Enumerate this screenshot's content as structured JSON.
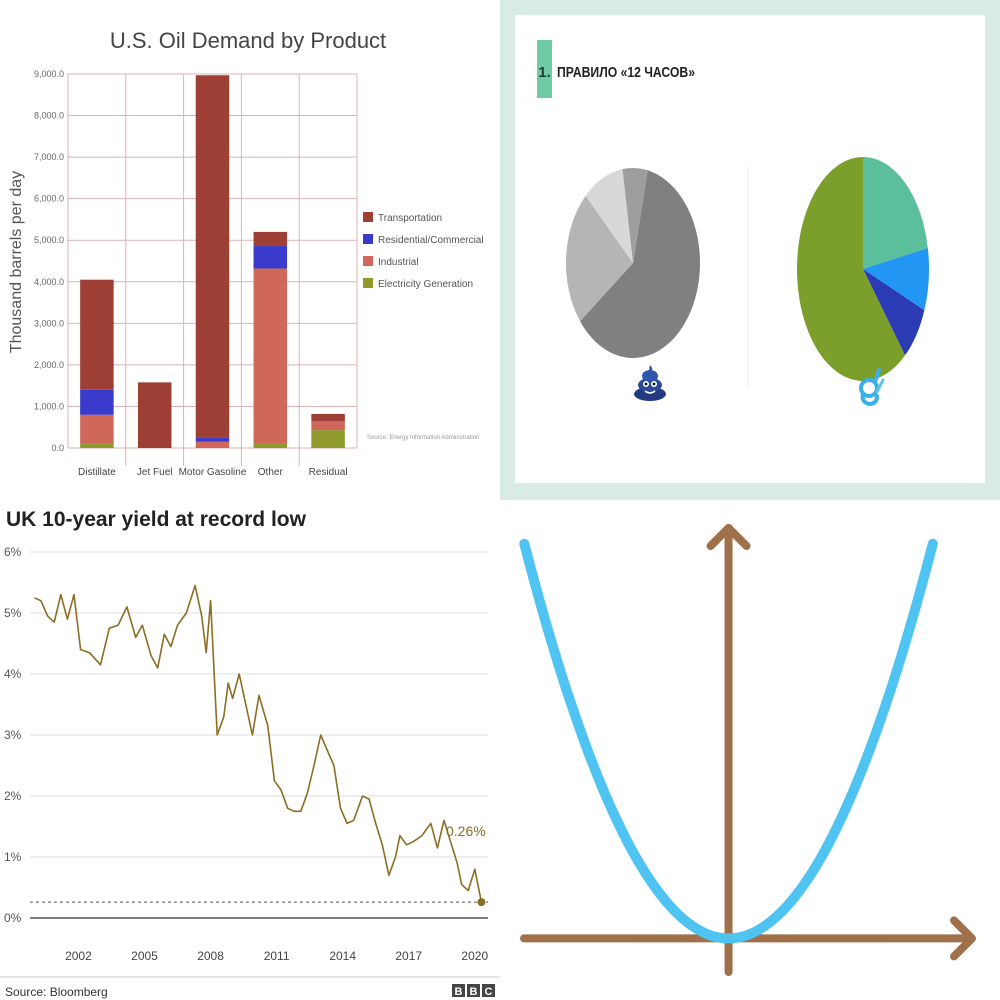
{
  "chart_data": [
    {
      "type": "bar",
      "stacked": true,
      "title": "U.S. Oil Demand by Product",
      "ylabel": "Thousand barrels per day",
      "xlabel": "",
      "ylim": [
        0,
        9000
      ],
      "yticks": [
        "0.0",
        "1,000.0",
        "2,000.0",
        "3,000.0",
        "4,000.0",
        "5,000.0",
        "6,000.0",
        "7,000.0",
        "8,000.0",
        "9,000.0"
      ],
      "categories": [
        "Distillate",
        "Jet Fuel",
        "Motor Gasoline",
        "Other",
        "Residual"
      ],
      "series": [
        {
          "name": "Electricity Generation",
          "color": "#8f9a2c",
          "values": [
            100,
            0,
            0,
            120,
            430
          ]
        },
        {
          "name": "Industrial",
          "color": "#d0675b",
          "values": [
            700,
            0,
            150,
            4200,
            220
          ]
        },
        {
          "name": "Residential/Commercial",
          "color": "#3a3acc",
          "values": [
            600,
            0,
            100,
            540,
            0
          ]
        },
        {
          "name": "Transportation",
          "color": "#9e3f36",
          "values": [
            2650,
            1580,
            8720,
            340,
            170
          ]
        }
      ],
      "legend": [
        "Transportation",
        "Residential/Commercial",
        "Industrial",
        "Electricity Generation"
      ],
      "legend_position": "right",
      "source": "Source: Energy Information Administration"
    },
    {
      "type": "pie",
      "title": "1. ПРАВИЛО «12 ЧАСОВ»",
      "title_number": "1.",
      "title_text": "ПРАВИЛО «12 ЧАСОВ»",
      "pies": [
        {
          "icon": "poop-emoji-icon",
          "slices": [
            {
              "value": 61,
              "color": "#808080"
            },
            {
              "value": 23,
              "color": "#b5b5b5"
            },
            {
              "value": 10,
              "color": "#d8d8d8"
            },
            {
              "value": 6,
              "color": "#9e9e9e"
            }
          ]
        },
        {
          "icon": "ok-hand-emoji-icon",
          "slices": [
            {
              "value": 22,
              "color": "#5bbf9c"
            },
            {
              "value": 9,
              "color": "#2196f3"
            },
            {
              "value": 8,
              "color": "#2b3bb4"
            },
            {
              "value": 61,
              "color": "#7c9e2a"
            }
          ]
        }
      ]
    },
    {
      "type": "line",
      "title": "UK 10-year yield at record low",
      "ylim": [
        0,
        6
      ],
      "yticks": [
        "0%",
        "1%",
        "2%",
        "3%",
        "4%",
        "5%",
        "6%"
      ],
      "xticks": [
        "2002",
        "2005",
        "2008",
        "2011",
        "2014",
        "2017",
        "2020"
      ],
      "xlim": [
        1999.8,
        2020.6
      ],
      "series": [
        {
          "name": "",
          "color": "#8b6d23",
          "x": [
            2000,
            2000.3,
            2000.6,
            2000.9,
            2001.2,
            2001.5,
            2001.8,
            2002.1,
            2002.5,
            2003.0,
            2003.4,
            2003.8,
            2004.2,
            2004.6,
            2004.9,
            2005.3,
            2005.6,
            2005.9,
            2006.2,
            2006.5,
            2006.9,
            2007.3,
            2007.6,
            2007.8,
            2008.0,
            2008.3,
            2008.6,
            2008.8,
            2009.0,
            2009.3,
            2009.6,
            2009.9,
            2010.2,
            2010.6,
            2010.9,
            2011.2,
            2011.5,
            2011.8,
            2012.1,
            2012.4,
            2012.7,
            2013.0,
            2013.3,
            2013.6,
            2013.9,
            2014.2,
            2014.5,
            2014.9,
            2015.2,
            2015.5,
            2015.8,
            2016.1,
            2016.4,
            2016.6,
            2016.9,
            2017.2,
            2017.6,
            2018.0,
            2018.3,
            2018.6,
            2018.9,
            2019.2,
            2019.4,
            2019.7,
            2020.0,
            2020.3
          ],
          "values": [
            5.25,
            5.2,
            4.95,
            4.85,
            5.3,
            4.9,
            5.3,
            4.4,
            4.35,
            4.15,
            4.75,
            4.8,
            5.1,
            4.6,
            4.8,
            4.3,
            4.1,
            4.65,
            4.45,
            4.8,
            5.0,
            5.45,
            4.95,
            4.35,
            5.2,
            3.0,
            3.3,
            3.85,
            3.6,
            4.0,
            3.5,
            3.0,
            3.65,
            3.15,
            2.25,
            2.1,
            1.8,
            1.75,
            1.75,
            2.05,
            2.5,
            3.0,
            2.75,
            2.5,
            1.8,
            1.55,
            1.6,
            2.0,
            1.95,
            1.55,
            1.2,
            0.7,
            1.0,
            1.35,
            1.2,
            1.25,
            1.35,
            1.55,
            1.15,
            1.6,
            1.25,
            0.9,
            0.55,
            0.45,
            0.8,
            0.26
          ]
        }
      ],
      "annotation": "0.26%",
      "source": "Source: Bloomberg",
      "logo": "BBC"
    },
    {
      "type": "line",
      "function": "y = x^2",
      "x": [
        -1,
        -0.8,
        -0.6,
        -0.4,
        -0.2,
        0,
        0.2,
        0.4,
        0.6,
        0.8,
        1
      ],
      "values": [
        1,
        0.64,
        0.36,
        0.16,
        0.04,
        0,
        0.04,
        0.16,
        0.36,
        0.64,
        1
      ],
      "xlim": [
        -1.07,
        1.28
      ],
      "ylim": [
        -0.08,
        1.06
      ],
      "curve_color": "#4fc3f2",
      "axis_color": "#a0704a"
    }
  ]
}
